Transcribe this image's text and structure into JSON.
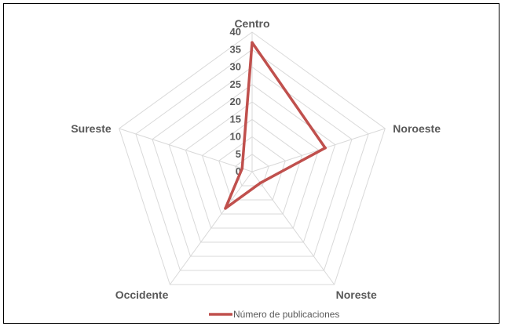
{
  "chart_data": {
    "type": "radar",
    "categories": [
      "Centro",
      "Noroeste",
      "Noreste",
      "Occidente",
      "Sureste"
    ],
    "series": [
      {
        "name": "Número de publicaciones",
        "values": [
          37,
          22,
          4,
          13,
          3
        ],
        "color": "#C0504D"
      }
    ],
    "rlim": [
      0,
      40
    ],
    "ticks": [
      "0",
      "5",
      "10",
      "15",
      "20",
      "25",
      "30",
      "35",
      "40"
    ],
    "grid": true,
    "grid_color": "#D9D9D9",
    "legend_position": "bottom"
  }
}
